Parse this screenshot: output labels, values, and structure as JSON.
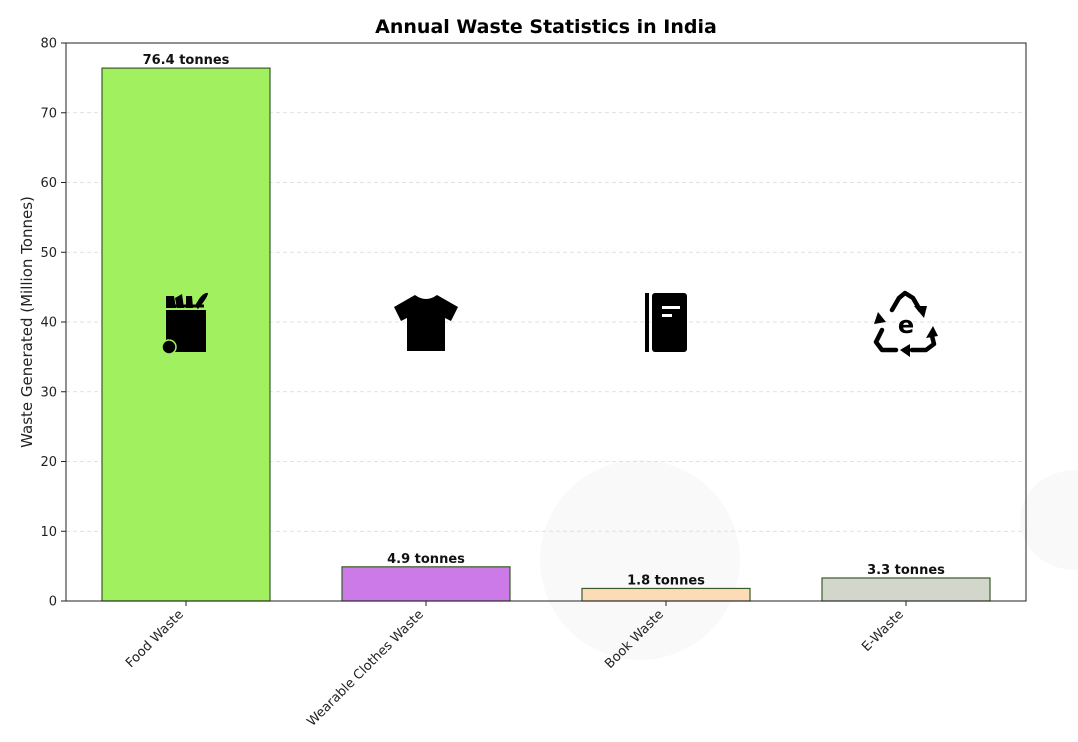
{
  "chart_data": {
    "type": "bar",
    "title": "Annual Waste Statistics in India",
    "xlabel": "",
    "ylabel": "Waste Generated (Million Tonnes)",
    "ylim": [
      0,
      80
    ],
    "yticks": [
      0,
      10,
      20,
      30,
      40,
      50,
      60,
      70,
      80
    ],
    "grid": "horizontal dashed",
    "categories": [
      "Food Waste",
      "Wearable Clothes Waste",
      "Book Waste",
      "E-Waste"
    ],
    "values": [
      76.4,
      4.9,
      1.8,
      3.3
    ],
    "data_labels": [
      "76.4 tonnes",
      "4.9 tonnes",
      "1.8 tonnes",
      "3.3 tonnes"
    ],
    "colors": [
      "#a0f060",
      "#cc7ae8",
      "#fbdcb6",
      "#d3d6cb"
    ],
    "edge_color": "#3a5a2a",
    "icons": [
      "grocery-bag-icon",
      "t-shirt-icon",
      "book-icon",
      "e-waste-recycle-icon"
    ],
    "icon_level": 40
  }
}
